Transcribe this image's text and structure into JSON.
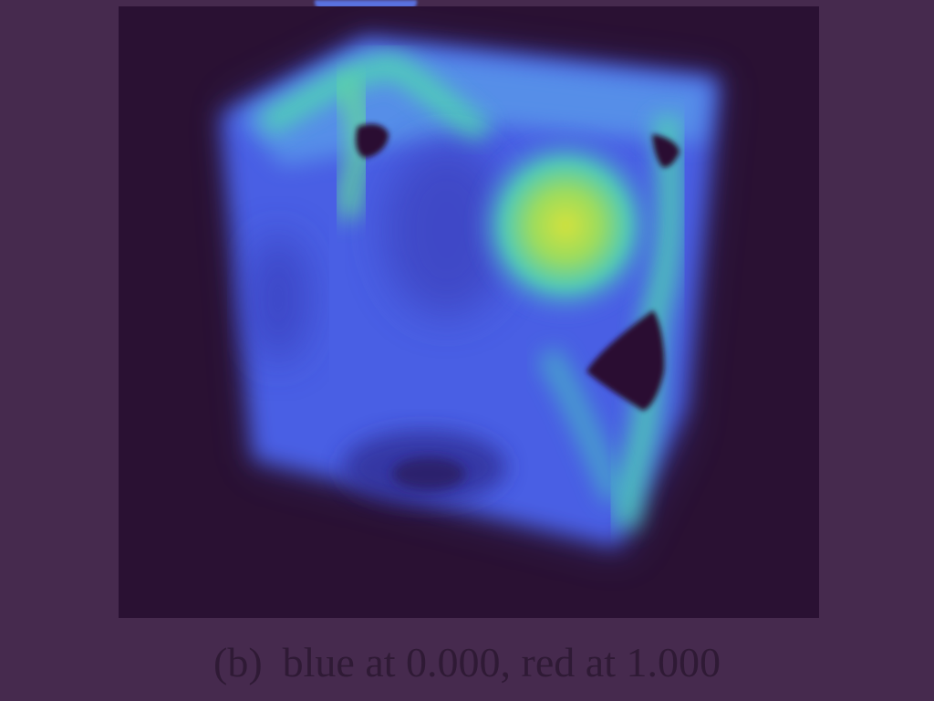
{
  "figure": {
    "panel": {
      "background_color": "#2a1133",
      "colormap": [
        "#2a1133",
        "#4a62e6",
        "#5bb4e8",
        "#47d6ad",
        "#9bdd62",
        "#d2e240"
      ],
      "subject": "cube-volume-render"
    },
    "caption": {
      "label": "(b)",
      "text": "blue at 0.000, red at 1.000"
    }
  }
}
